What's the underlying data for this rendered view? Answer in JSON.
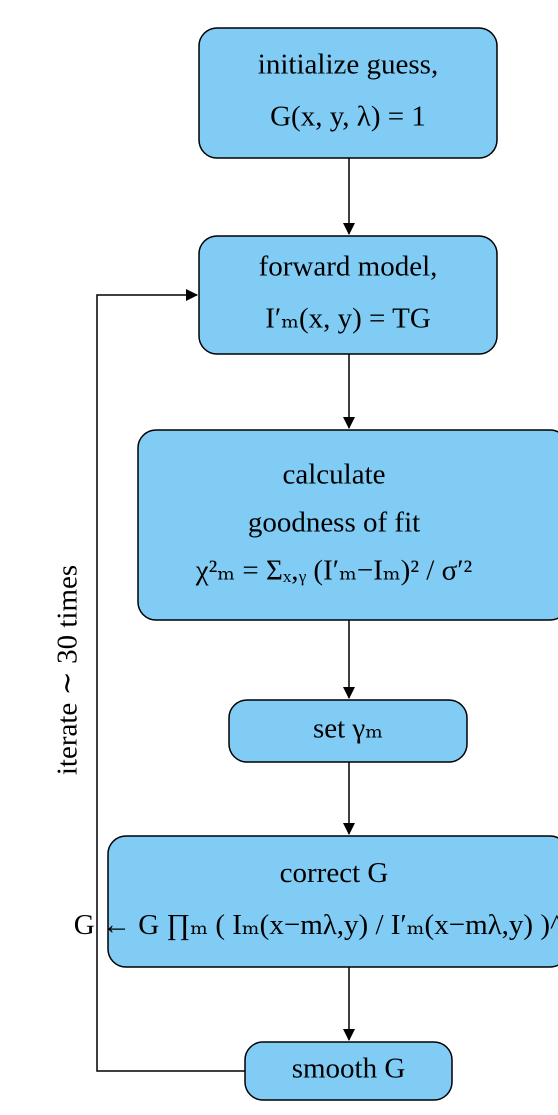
{
  "nodes": [
    {
      "lines": [
        "initialize guess,",
        "G(x, y, λ) = 1"
      ]
    },
    {
      "lines": [
        "forward model,",
        "I′ₘ(x, y) = TG"
      ]
    },
    {
      "lines": [
        "calculate",
        "goodness of fit",
        "χ²ₘ = Σₓ,ᵧ (I′ₘ−Iₘ)² / σ′²"
      ]
    },
    {
      "lines": [
        "set γₘ"
      ]
    },
    {
      "lines": [
        "correct G",
        "G ← G ∏ₘ ( Iₘ(x−mλ,y) / I′ₘ(x−mλ,y) )^γₘ"
      ]
    },
    {
      "lines": [
        "smooth G"
      ]
    }
  ],
  "loop_label": "iterate ∼ 30 times"
}
